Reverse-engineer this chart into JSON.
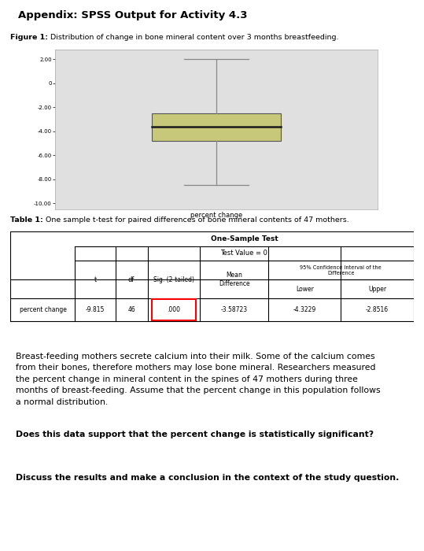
{
  "header_text": "Appendix: SPSS Output for Activity 4.3",
  "header_bg": "#c8d9a0",
  "figure_caption_bold": "Figure 1:",
  "figure_caption_rest": " Distribution of change in bone mineral content over 3 months breastfeeding.",
  "boxplot": {
    "whisker_low": -8.5,
    "q1": -4.8,
    "median": -3.65,
    "q3": -2.5,
    "whisker_high": 2.0,
    "xlabel": "percent change",
    "ylim_min": -10.5,
    "ylim_max": 2.8,
    "yticks": [
      2.0,
      0.0,
      -2.0,
      -4.0,
      -6.0,
      -8.0,
      -10.0
    ],
    "ytick_labels": [
      "2.00",
      "0",
      "-2.00",
      "-4.00",
      "-6.00",
      "-8.00",
      "-10.00"
    ],
    "box_color": "#c8c87a",
    "median_color": "#1a1a1a",
    "whisker_color": "#888888",
    "bg_color": "#e0e0e0"
  },
  "table_title_bold": "Table 1:",
  "table_title_rest": " One sample t-test for paired differences of bone mineral contents of 47 mothers.",
  "row_label": "percent change",
  "t_val": "-9.815",
  "df_val": "46",
  "sig_val": ".000",
  "mean_diff": "-3.58723",
  "lower": "-4.3229",
  "upper": "-2.8516",
  "paragraph1_line1": "Breast-feeding mothers secrete calcium into their milk. Some of the calcium comes",
  "paragraph1_line2": "from their bones, therefore mothers may lose bone mineral. Researchers measured",
  "paragraph1_line3": "the percent change in mineral content in the spines of 47 mothers during three",
  "paragraph1_line4": "months of breast-feeding. Assume that the percent change in this population follows",
  "paragraph1_line5": "a normal distribution.",
  "question1": "Does this data support that the percent change is statistically significant?",
  "question2": "Discuss the results and make a conclusion in the context of the study question."
}
